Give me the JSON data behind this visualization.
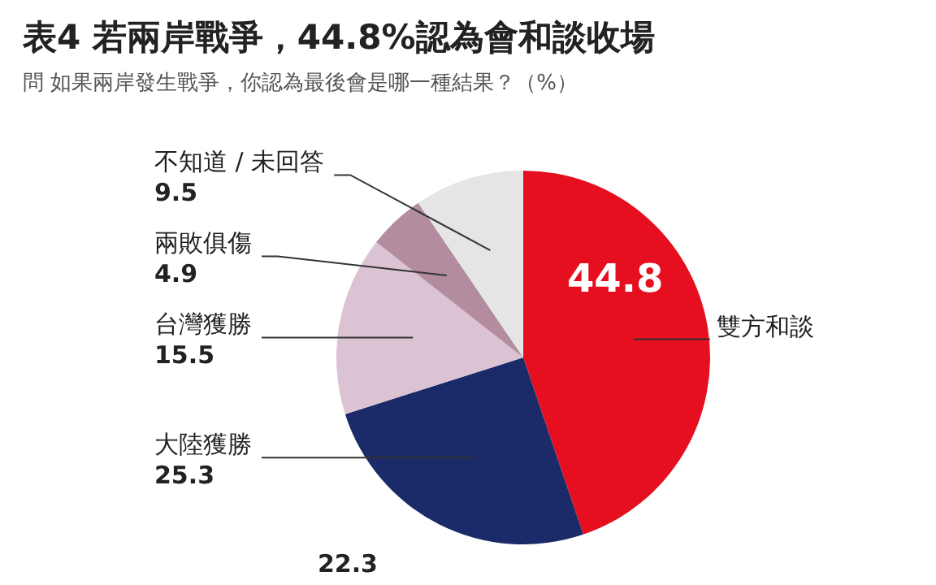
{
  "chart_data": {
    "type": "pie",
    "title": "表4 若兩岸戰爭，44.8%認為會和談收場",
    "subtitle": "問 如果兩岸發生戰爭，你認為最後會是哪一種結果？（%）",
    "categories": [
      "雙方和談",
      "大陸獲勝",
      "台灣獲勝",
      "兩敗俱傷",
      "不知道 / 未回答"
    ],
    "values": [
      44.8,
      25.3,
      15.5,
      4.9,
      9.5
    ],
    "colors": [
      "#e50f1f",
      "#1b2a68",
      "#dcc3d3",
      "#b38c9f",
      "#e5e5e5"
    ],
    "data_labels": true,
    "annotations": [
      "22.3"
    ]
  }
}
